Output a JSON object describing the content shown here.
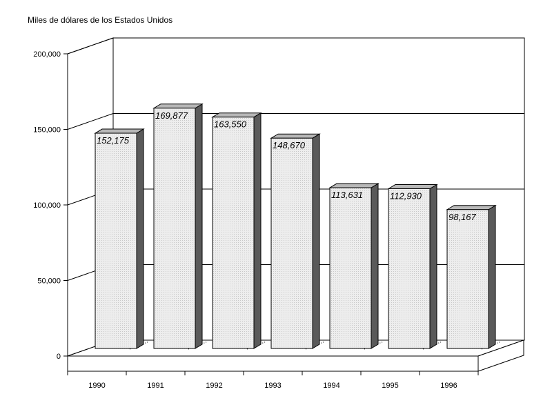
{
  "chart_data": {
    "type": "bar",
    "unit_label": "Miles de dólares de los Estados Unidos",
    "categories": [
      "1990",
      "1991",
      "1992",
      "1993",
      "1994",
      "1995",
      "1996"
    ],
    "values": [
      152175,
      169877,
      163550,
      148670,
      113631,
      112930,
      98167
    ],
    "value_labels": [
      "152,175",
      "169,877",
      "163,550",
      "148,670",
      "113,631",
      "112,930",
      "98,167"
    ],
    "y_ticks": [
      0,
      50000,
      100000,
      150000,
      200000
    ],
    "y_tick_labels": [
      "0",
      "50,000",
      "100,000",
      "150,000",
      "200,000"
    ],
    "ylim": [
      0,
      200000
    ],
    "grid": true,
    "legend": "none",
    "colors": {
      "bar_front": "#e8e8e8",
      "bar_side": "#5a5a5a",
      "bar_top": "#b8b8b8",
      "outline": "#000000"
    }
  }
}
